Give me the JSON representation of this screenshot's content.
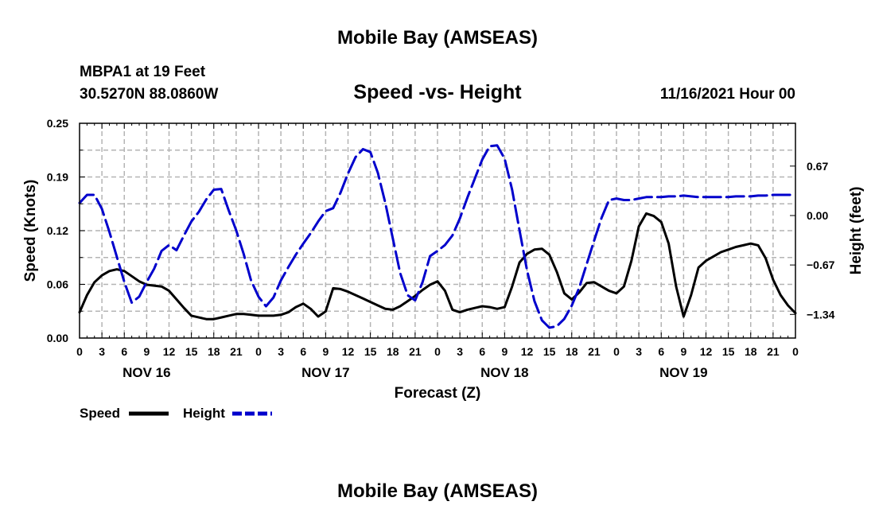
{
  "header": {
    "title": "Mobile Bay (AMSEAS)",
    "station": "MBPA1 at 19 Feet",
    "coords": "30.5270N  88.0860W",
    "subtitle": "Speed -vs- Height",
    "date": "11/16/2021 Hour 00"
  },
  "footer": {
    "title": "Mobile Bay (AMSEAS)"
  },
  "chart_data": {
    "type": "line",
    "title": "Speed -vs- Height",
    "xlabel": "Forecast (Z)",
    "ylabel": "Speed (Knots)",
    "y2label": "Height (feet)",
    "x_range": [
      0,
      96
    ],
    "ylim": [
      0,
      0.25
    ],
    "y2lim": [
      -1.66,
      1.25
    ],
    "x_ticks": [
      0,
      3,
      6,
      9,
      12,
      15,
      18,
      21,
      24,
      27,
      30,
      33,
      36,
      39,
      42,
      45,
      48,
      51,
      54,
      57,
      60,
      63,
      66,
      69,
      72,
      75,
      78,
      81,
      84,
      87,
      90,
      93,
      96
    ],
    "x_tick_labels": [
      "0",
      "3",
      "6",
      "9",
      "12",
      "15",
      "18",
      "21",
      "0",
      "3",
      "6",
      "9",
      "12",
      "15",
      "18",
      "21",
      "0",
      "3",
      "6",
      "9",
      "12",
      "15",
      "18",
      "21",
      "0",
      "3",
      "6",
      "9",
      "12",
      "15",
      "18",
      "21",
      "0"
    ],
    "y_ticks": [
      0,
      0.0625,
      0.125,
      0.1875,
      0.25
    ],
    "y_tick_labels": [
      "0.00",
      "0.06",
      "0.12",
      "0.19",
      "0.25"
    ],
    "y2_ticks": [
      0.67,
      0.0,
      -0.67,
      -1.34
    ],
    "y2_tick_labels": [
      "0.67",
      "0.00",
      "−0.67",
      "−1.34"
    ],
    "day_labels": [
      {
        "label": "NOV 16",
        "x": 9
      },
      {
        "label": "NOV 17",
        "x": 33
      },
      {
        "label": "NOV 18",
        "x": 57
      },
      {
        "label": "NOV 19",
        "x": 81
      }
    ],
    "legend": [
      {
        "name": "Speed",
        "color": "#000000",
        "style": "solid"
      },
      {
        "name": "Height",
        "color": "#0000cc",
        "style": "dashed"
      }
    ],
    "series": [
      {
        "name": "Speed",
        "axis": "left",
        "color": "#000000",
        "x": [
          0,
          1,
          2,
          3,
          4,
          5,
          6,
          7,
          8,
          9,
          10,
          11,
          12,
          13,
          14,
          15,
          16,
          17,
          18,
          19,
          20,
          21,
          22,
          23,
          24,
          25,
          26,
          27,
          28,
          29,
          30,
          31,
          32,
          33,
          34,
          35,
          36,
          37,
          38,
          39,
          40,
          41,
          42,
          43,
          44,
          45,
          46,
          47,
          48,
          49,
          50,
          51,
          52,
          53,
          54,
          55,
          56,
          57,
          58,
          59,
          60,
          61,
          62,
          63,
          64,
          65,
          66,
          67,
          68,
          69,
          70,
          71,
          72,
          73,
          74,
          75,
          76,
          77,
          78,
          79,
          80,
          81,
          82,
          83,
          84,
          85,
          86,
          87,
          88,
          89,
          90,
          91,
          92,
          93,
          94,
          95,
          96
        ],
        "values": [
          0.03,
          0.05,
          0.065,
          0.073,
          0.078,
          0.08,
          0.078,
          0.072,
          0.066,
          0.062,
          0.061,
          0.06,
          0.055,
          0.045,
          0.035,
          0.026,
          0.024,
          0.022,
          0.022,
          0.024,
          0.026,
          0.028,
          0.028,
          0.027,
          0.026,
          0.026,
          0.026,
          0.027,
          0.03,
          0.036,
          0.04,
          0.034,
          0.025,
          0.031,
          0.058,
          0.057,
          0.054,
          0.05,
          0.046,
          0.042,
          0.038,
          0.034,
          0.033,
          0.037,
          0.043,
          0.049,
          0.056,
          0.062,
          0.066,
          0.055,
          0.033,
          0.03,
          0.033,
          0.035,
          0.037,
          0.036,
          0.034,
          0.036,
          0.06,
          0.088,
          0.098,
          0.103,
          0.104,
          0.097,
          0.077,
          0.052,
          0.045,
          0.053,
          0.064,
          0.065,
          0.06,
          0.055,
          0.052,
          0.06,
          0.09,
          0.13,
          0.145,
          0.142,
          0.135,
          0.11,
          0.06,
          0.025,
          0.05,
          0.082,
          0.09,
          0.095,
          0.1,
          0.103,
          0.106,
          0.108,
          0.11,
          0.108,
          0.093,
          0.068,
          0.05,
          0.038,
          0.029
        ]
      },
      {
        "name": "Height",
        "axis": "right",
        "color": "#0000cc",
        "x": [
          0,
          1,
          2,
          3,
          4,
          5,
          6,
          7,
          8,
          9,
          10,
          11,
          12,
          13,
          14,
          15,
          16,
          17,
          18,
          19,
          20,
          21,
          22,
          23,
          24,
          25,
          26,
          27,
          28,
          29,
          30,
          31,
          32,
          33,
          34,
          35,
          36,
          37,
          38,
          39,
          40,
          41,
          42,
          43,
          44,
          45,
          46,
          47,
          48,
          49,
          50,
          51,
          52,
          53,
          54,
          55,
          56,
          57,
          58,
          59,
          60,
          61,
          62,
          63,
          64,
          65,
          66,
          67,
          68,
          69,
          70,
          71,
          72,
          73,
          74,
          75,
          76,
          77,
          78,
          79,
          80,
          81,
          82,
          83,
          84,
          85,
          86,
          87,
          88,
          89,
          90,
          91,
          92,
          93,
          94,
          95,
          96
        ],
        "values": [
          0.17,
          0.28,
          0.28,
          0.09,
          -0.22,
          -0.56,
          -0.9,
          -1.18,
          -1.1,
          -0.9,
          -0.72,
          -0.48,
          -0.4,
          -0.47,
          -0.27,
          -0.08,
          0.05,
          0.22,
          0.35,
          0.36,
          0.07,
          -0.2,
          -0.52,
          -0.88,
          -1.1,
          -1.23,
          -1.11,
          -0.88,
          -0.7,
          -0.53,
          -0.38,
          -0.24,
          -0.08,
          0.06,
          0.1,
          0.31,
          0.57,
          0.79,
          0.9,
          0.86,
          0.58,
          0.17,
          -0.31,
          -0.78,
          -1.08,
          -1.15,
          -0.9,
          -0.55,
          -0.48,
          -0.4,
          -0.27,
          -0.04,
          0.24,
          0.5,
          0.76,
          0.94,
          0.95,
          0.77,
          0.35,
          -0.2,
          -0.74,
          -1.16,
          -1.42,
          -1.52,
          -1.5,
          -1.4,
          -1.22,
          -0.98,
          -0.66,
          -0.34,
          -0.03,
          0.21,
          0.23,
          0.21,
          0.21,
          0.23,
          0.25,
          0.25,
          0.25,
          0.26,
          0.26,
          0.27,
          0.26,
          0.25,
          0.25,
          0.25,
          0.25,
          0.25,
          0.26,
          0.26,
          0.26,
          0.27,
          0.27,
          0.28,
          0.28,
          0.28,
          0.28
        ]
      }
    ]
  }
}
